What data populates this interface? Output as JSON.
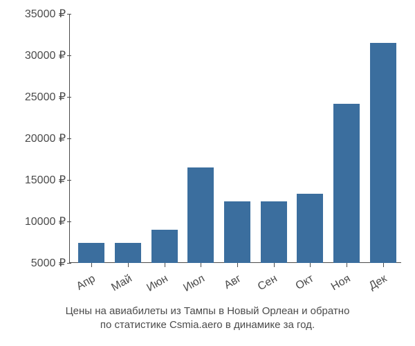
{
  "chart": {
    "type": "bar",
    "categories": [
      "Апр",
      "Май",
      "Июн",
      "Июл",
      "Авг",
      "Сен",
      "Окт",
      "Ноя",
      "Дек"
    ],
    "values": [
      7400,
      7400,
      9000,
      16500,
      12400,
      12400,
      13300,
      24200,
      31500
    ],
    "bar_color": "#3b6e9e",
    "ylim_min": 5000,
    "ylim_max": 35000,
    "ytick_values": [
      5000,
      10000,
      15000,
      20000,
      25000,
      30000,
      35000
    ],
    "ytick_labels": [
      "5000 ₽",
      "10000 ₽",
      "15000 ₽",
      "20000 ₽",
      "25000 ₽",
      "30000 ₽",
      "35000 ₽"
    ],
    "axis_color": "#4a4a4a",
    "text_color": "#4a4a4a",
    "background_color": "#ffffff",
    "label_fontsize": 16,
    "xlabel_rotation": -30,
    "bar_width": 0.72
  },
  "caption": {
    "line1": "Цены на авиабилеты из Тампы в Новый Орлеан и обратно",
    "line2": "по статистике Csmia.aero в динамике за год."
  }
}
